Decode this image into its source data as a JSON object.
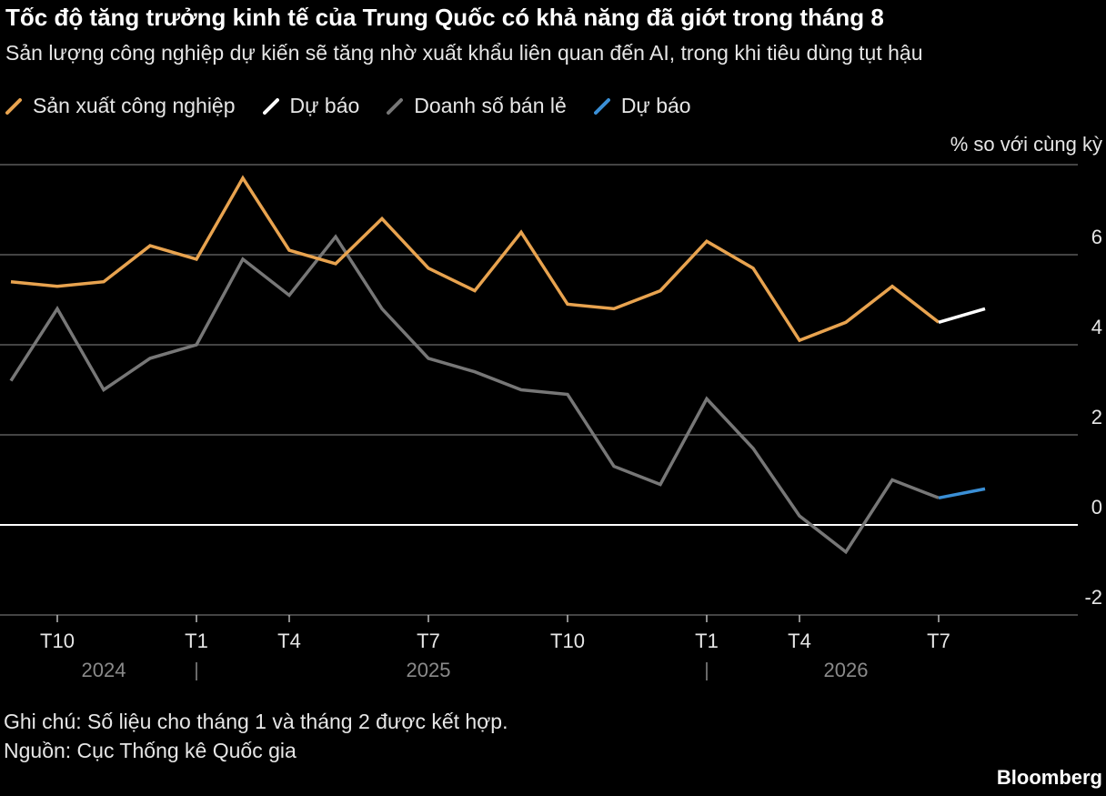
{
  "header": {
    "title": "Tốc độ tăng trưởng kinh tế của Trung Quốc có khả năng đã giớt trong tháng 8",
    "subtitle": "Sản lượng công nghiệp dự kiến sẽ tăng nhờ xuất khẩu liên quan đến AI, trong khi tiêu dùng tụt hậu"
  },
  "footer": {
    "note": "Ghi chú: Số liệu cho tháng 1 và tháng 2 được kết hợp.",
    "source": "Nguồn: Cục Thống kê Quốc gia",
    "brand": "Bloomberg"
  },
  "chart_data": {
    "type": "line",
    "unit_label": "% so với cùng kỳ",
    "ylim": [
      -2.4,
      8
    ],
    "yticks": [
      -2,
      0,
      2,
      4,
      6
    ],
    "grid": true,
    "legend_position": "top-left",
    "x_months": [
      "2024-09",
      "2024-10",
      "2024-11",
      "2024-12",
      "2025-02",
      "2025-03",
      "2025-04",
      "2025-05",
      "2025-06",
      "2025-07",
      "2025-08",
      "2025-09",
      "2025-10",
      "2025-11",
      "2025-12",
      "2026-02",
      "2026-03",
      "2026-04",
      "2026-05",
      "2026-06",
      "2026-07",
      "2026-08"
    ],
    "xticks": [
      {
        "month": "2024-10",
        "label": "T10"
      },
      {
        "month": "2025-02",
        "label": "T1"
      },
      {
        "month": "2025-04",
        "label": "T4"
      },
      {
        "month": "2025-07",
        "label": "T7"
      },
      {
        "month": "2025-10",
        "label": "T10"
      },
      {
        "month": "2026-02",
        "label": "T1"
      },
      {
        "month": "2026-04",
        "label": "T4"
      },
      {
        "month": "2026-07",
        "label": "T7"
      }
    ],
    "year_labels": [
      {
        "label": "2024",
        "month": "2024-11"
      },
      {
        "label": "2025",
        "month": "2025-07"
      },
      {
        "label": "2026",
        "month": "2026-05"
      }
    ],
    "year_separators": [
      "2025-02",
      "2026-02"
    ],
    "series": [
      {
        "name": "Sản xuất công nghiệp",
        "color": "#e8a34f",
        "x": [
          "2024-09",
          "2024-10",
          "2024-11",
          "2024-12",
          "2025-02",
          "2025-03",
          "2025-04",
          "2025-05",
          "2025-06",
          "2025-07",
          "2025-08",
          "2025-09",
          "2025-10",
          "2025-11",
          "2025-12",
          "2026-02",
          "2026-03",
          "2026-04",
          "2026-05",
          "2026-06",
          "2026-07"
        ],
        "values": [
          5.4,
          5.3,
          5.4,
          6.2,
          5.9,
          7.7,
          6.1,
          5.8,
          6.8,
          5.7,
          5.2,
          6.5,
          4.9,
          4.8,
          5.2,
          6.3,
          5.7,
          4.1,
          4.5,
          5.3,
          4.5
        ]
      },
      {
        "name": "Dự báo",
        "color": "#ffffff",
        "x": [
          "2026-07",
          "2026-08"
        ],
        "values": [
          4.5,
          4.8
        ]
      },
      {
        "name": "Doanh số bán lẻ",
        "color": "#777777",
        "x": [
          "2024-09",
          "2024-10",
          "2024-11",
          "2024-12",
          "2025-02",
          "2025-03",
          "2025-04",
          "2025-05",
          "2025-06",
          "2025-07",
          "2025-08",
          "2025-09",
          "2025-10",
          "2025-11",
          "2025-12",
          "2026-02",
          "2026-03",
          "2026-04",
          "2026-05",
          "2026-06",
          "2026-07"
        ],
        "values": [
          3.2,
          4.8,
          3.0,
          3.7,
          4.0,
          5.9,
          5.1,
          6.4,
          4.8,
          3.7,
          3.4,
          3.0,
          2.9,
          1.3,
          0.9,
          2.8,
          1.7,
          0.2,
          -0.6,
          1.0,
          0.6
        ]
      },
      {
        "name": "Dự báo",
        "color": "#3a8fd6",
        "x": [
          "2026-07",
          "2026-08"
        ],
        "values": [
          0.6,
          0.8
        ]
      }
    ]
  }
}
